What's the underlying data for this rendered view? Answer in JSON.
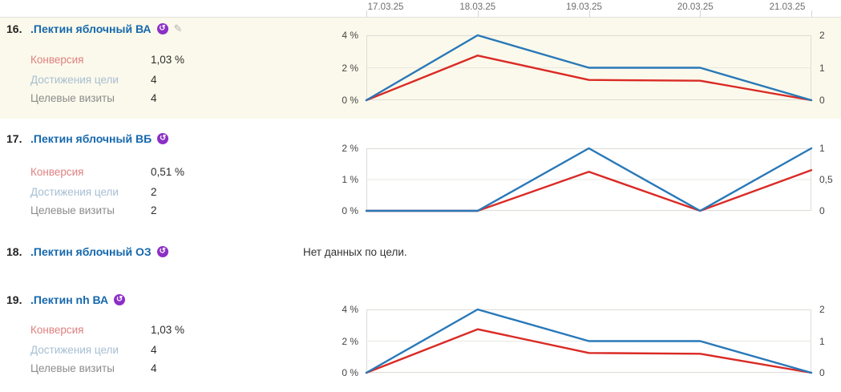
{
  "header_dates": [
    "17.03.25",
    "18.03.25",
    "19.03.25",
    "20.03.25",
    "21.03.25"
  ],
  "icons": {
    "retargeting_glyph": "↺",
    "edit_glyph": "✎"
  },
  "colors": {
    "line_blue": "#2878b8",
    "line_red": "#da2a25",
    "row_highlight": "#fbf9eb",
    "title_blue": "#1668ad",
    "conversion_label": "#df8181",
    "reaches_label": "#a7bed2",
    "visits_label": "#8c8c8c"
  },
  "rows": [
    {
      "index": "16.",
      "title": ".Пектин яблочный ВА",
      "metrics": [
        {
          "label": "Конверсия",
          "value": "1,03 %"
        },
        {
          "label": "Достижения цели",
          "value": "4"
        },
        {
          "label": "Целевые визиты",
          "value": "4"
        }
      ],
      "chart_data": {
        "type": "line",
        "x": [
          "17.03.25",
          "18.03.25",
          "19.03.25",
          "20.03.25",
          "21.03.25"
        ],
        "left_axis": {
          "ticks": [
            "4 %",
            "2 %",
            "0 %"
          ],
          "max": 4,
          "unit": "%"
        },
        "right_axis": {
          "ticks": [
            "2",
            "1",
            "0"
          ],
          "max": 2
        },
        "series": [
          {
            "name": "Достижения цели",
            "color": "#2878b8",
            "axis": "right",
            "values": [
              0,
              2,
              1,
              1,
              0
            ]
          },
          {
            "name": "Конверсия",
            "color": "#da2a25",
            "axis": "left",
            "values": [
              0,
              2.75,
              1.25,
              1.2,
              0
            ]
          }
        ]
      }
    },
    {
      "index": "17.",
      "title": ".Пектин яблочный ВБ",
      "metrics": [
        {
          "label": "Конверсия",
          "value": "0,51 %"
        },
        {
          "label": "Достижения цели",
          "value": "2"
        },
        {
          "label": "Целевые визиты",
          "value": "2"
        }
      ],
      "chart_data": {
        "type": "line",
        "x": [
          "17.03.25",
          "18.03.25",
          "19.03.25",
          "20.03.25",
          "21.03.25"
        ],
        "left_axis": {
          "ticks": [
            "2 %",
            "1 %",
            "0 %"
          ],
          "max": 2,
          "unit": "%"
        },
        "right_axis": {
          "ticks": [
            "1",
            "0,5",
            "0"
          ],
          "max": 1
        },
        "series": [
          {
            "name": "Достижения цели",
            "color": "#2878b8",
            "axis": "right",
            "values": [
              0,
              0,
              1,
              0,
              1
            ]
          },
          {
            "name": "Конверсия",
            "color": "#da2a25",
            "axis": "left",
            "values": [
              0,
              0,
              1.25,
              0,
              1.3
            ]
          }
        ]
      }
    },
    {
      "index": "18.",
      "title": ".Пектин яблочный ОЗ",
      "no_data": "Нет данных по цели."
    },
    {
      "index": "19.",
      "title": ".Пектин nh ВА",
      "metrics": [
        {
          "label": "Конверсия",
          "value": "1,03 %"
        },
        {
          "label": "Достижения цели",
          "value": "4"
        },
        {
          "label": "Целевые визиты",
          "value": "4"
        }
      ],
      "chart_data": {
        "type": "line",
        "x": [
          "17.03.25",
          "18.03.25",
          "19.03.25",
          "20.03.25",
          "21.03.25"
        ],
        "left_axis": {
          "ticks": [
            "4 %",
            "2 %",
            "0 %"
          ],
          "max": 4,
          "unit": "%"
        },
        "right_axis": {
          "ticks": [
            "2",
            "1",
            "0"
          ],
          "max": 2
        },
        "series": [
          {
            "name": "Достижения цели",
            "color": "#2878b8",
            "axis": "right",
            "values": [
              0,
              2,
              1,
              1,
              0
            ]
          },
          {
            "name": "Конверсия",
            "color": "#da2a25",
            "axis": "left",
            "values": [
              0,
              2.75,
              1.25,
              1.2,
              0
            ]
          }
        ]
      }
    }
  ]
}
